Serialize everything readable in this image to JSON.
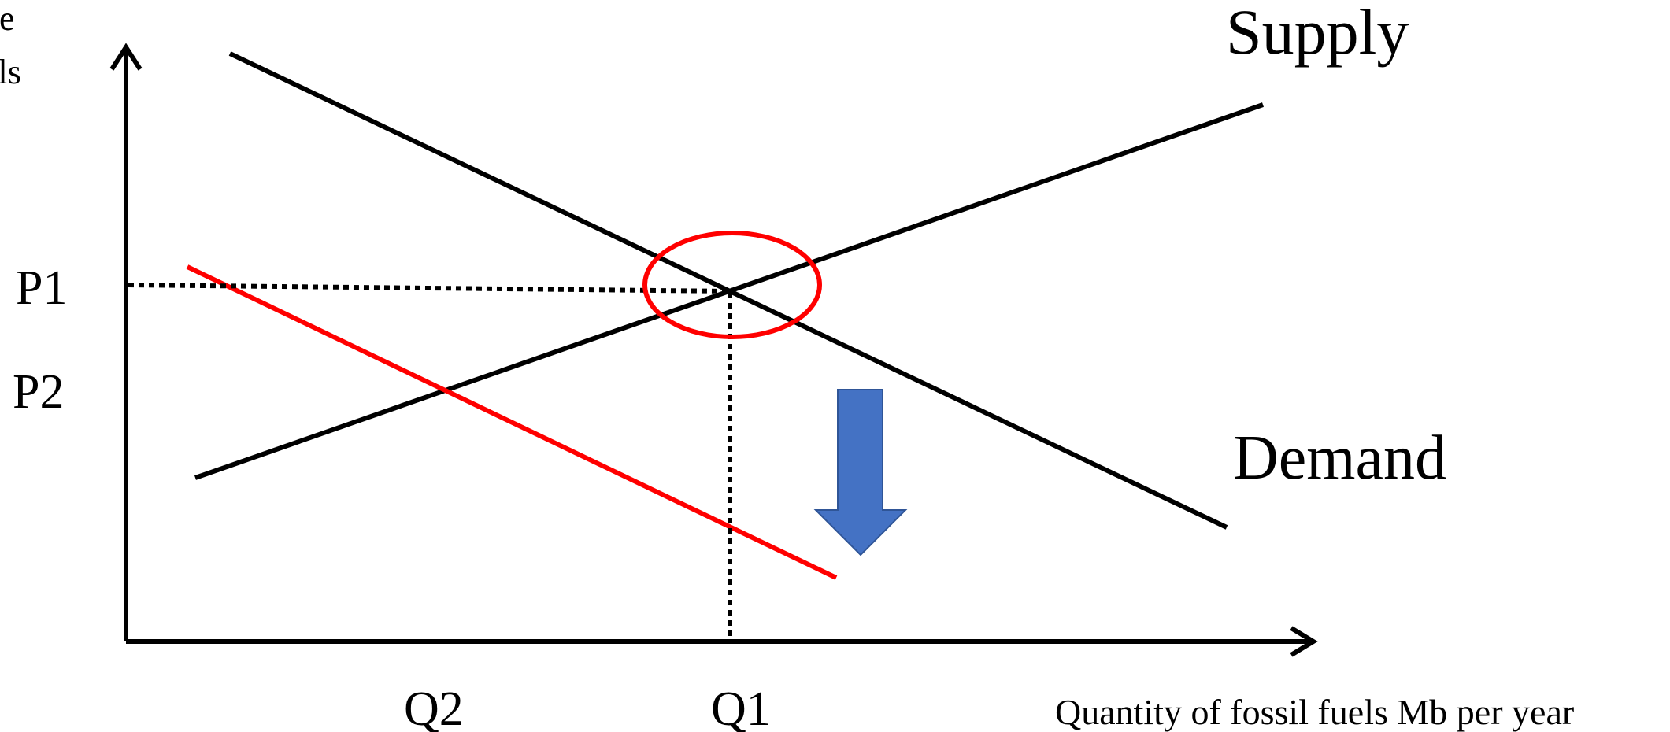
{
  "axes": {
    "y_label_line1": "e",
    "y_label_line2": "els",
    "x_label": "Quantity of fossil fuels Mb per year"
  },
  "curves": {
    "supply_label": "Supply",
    "demand_label": "Demand"
  },
  "ticks": {
    "p1": "P1",
    "p2": "P2",
    "q1": "Q1",
    "q2": "Q2"
  },
  "colors": {
    "curve": "#000000",
    "new_demand": "#ff0000",
    "equilibrium_circle": "#ff0000",
    "shift_arrow_fill": "#4472c4",
    "shift_arrow_stroke": "#2f5597"
  },
  "icons": {
    "shift_arrow": "arrow-down-icon"
  }
}
